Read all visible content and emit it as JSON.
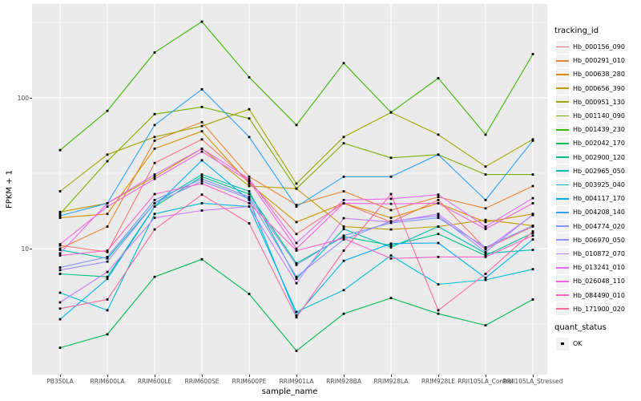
{
  "chart_data": {
    "type": "line",
    "title": "",
    "xlabel": "sample_name",
    "ylabel": "FPKM + 1",
    "y_scale": "log10",
    "ylim": [
      1.5,
      420
    ],
    "grid": true,
    "legend_position": "right",
    "y_axis_ticks": [
      {
        "label": "100",
        "value": 100
      },
      {
        "label": "10",
        "value": 10
      }
    ],
    "y_minor_gridlines": [
      3.1623,
      31.623,
      316.23
    ],
    "categories": [
      "PB350LA",
      "RRIM600LA",
      "RRIM600LE",
      "RRIM600SE",
      "RRIM600PE",
      "RRIM901LA",
      "RRIM928BA",
      "RRIM928LA",
      "RRIM928LE",
      "RRII105LA_Control",
      "RRII105LA_Stressed"
    ],
    "series": [
      {
        "name": "Hb_000156_090",
        "color": "#F8766D",
        "values": [
          10.5,
          9.5,
          37,
          53,
          28,
          12.5,
          20,
          15,
          21,
          10,
          14
        ]
      },
      {
        "name": "Hb_000291_010",
        "color": "#EA8331",
        "values": [
          10,
          14,
          52,
          69,
          30,
          19.5,
          24,
          18,
          22,
          18.5,
          26
        ]
      },
      {
        "name": "Hb_000638_280",
        "color": "#D89000",
        "values": [
          16,
          17,
          46,
          60,
          27,
          15,
          20,
          16,
          20,
          15,
          17
        ]
      },
      {
        "name": "Hb_000656_390",
        "color": "#C09B00",
        "values": [
          17.5,
          20,
          30,
          46,
          26,
          25,
          14,
          13.4,
          14,
          15.5,
          14.2
        ]
      },
      {
        "name": "Hb_000951_130",
        "color": "#A3A500",
        "values": [
          24,
          42,
          55,
          65,
          84,
          27,
          55,
          80,
          57,
          35,
          53
        ]
      },
      {
        "name": "Hb_001140_090",
        "color": "#7CAE00",
        "values": [
          17,
          38,
          78,
          87,
          73,
          25,
          50,
          40,
          42,
          31,
          31
        ]
      },
      {
        "name": "Hb_001439_230",
        "color": "#39B600",
        "values": [
          45,
          82,
          200,
          320,
          137,
          66,
          170,
          80,
          135,
          57,
          195
        ]
      },
      {
        "name": "Hb_002042_170",
        "color": "#00BB4E",
        "values": [
          2.2,
          2.7,
          6.5,
          8.5,
          5,
          2.1,
          3.7,
          4.7,
          3.7,
          3.1,
          4.6
        ]
      },
      {
        "name": "Hb_002900_120",
        "color": "#00C087",
        "values": [
          6.8,
          6.5,
          19,
          30,
          23,
          8,
          12,
          10.5,
          12.5,
          9,
          12.7
        ]
      },
      {
        "name": "Hb_002965_050",
        "color": "#00C0B4",
        "values": [
          9.8,
          8.6,
          20,
          31,
          24,
          6.3,
          13.5,
          10.2,
          14,
          9.3,
          9.8
        ]
      },
      {
        "name": "Hb_003925_040",
        "color": "#00BCD8",
        "values": [
          5.1,
          3.9,
          17,
          20,
          19,
          3.8,
          5.3,
          9,
          5.8,
          6.2,
          7.3
        ]
      },
      {
        "name": "Hb_004117_170",
        "color": "#00B0F6",
        "values": [
          3.4,
          6.3,
          19,
          38.5,
          21,
          3.6,
          8.3,
          10.8,
          10.9,
          6.4,
          11.5
        ]
      },
      {
        "name": "Hb_004208_140",
        "color": "#29A3FF",
        "values": [
          16.5,
          20,
          66,
          114,
          55,
          19,
          30,
          30,
          42,
          21,
          52
        ]
      },
      {
        "name": "Hb_004774_020",
        "color": "#7F96FF",
        "values": [
          7.5,
          8.8,
          21,
          29,
          22,
          7.8,
          12.2,
          14.8,
          16,
          10.2,
          14.2
        ]
      },
      {
        "name": "Hb_006970_050",
        "color": "#9590FF",
        "values": [
          7.2,
          8.2,
          20,
          28,
          21.5,
          6.5,
          11.5,
          15.2,
          16.5,
          9.5,
          16.8
        ]
      },
      {
        "name": "Hb_010872_070",
        "color": "#C77CFF",
        "values": [
          4.4,
          7,
          16,
          17.9,
          19,
          5.9,
          15.9,
          15,
          17,
          9.9,
          16.7
        ]
      },
      {
        "name": "Hb_013241_010",
        "color": "#E76BF3",
        "values": [
          9.3,
          20,
          31,
          46,
          29,
          10.9,
          21,
          21.4,
          22.8,
          14,
          21.6
        ]
      },
      {
        "name": "Hb_026048_110",
        "color": "#F763E0",
        "values": [
          10.7,
          19,
          29,
          44,
          28,
          10,
          20,
          19.8,
          20,
          13.5,
          20
        ]
      },
      {
        "name": "Hb_084490_010",
        "color": "#FF61C9",
        "values": [
          9,
          9.7,
          23,
          27,
          20,
          9.7,
          11.7,
          8.6,
          8.8,
          8.8,
          12.2
        ]
      },
      {
        "name": "Hb_171900_020",
        "color": "#FF689E",
        "values": [
          4,
          4.6,
          13.4,
          22.8,
          14.7,
          3.5,
          9.7,
          23,
          3.9,
          6.8,
          13
        ]
      }
    ],
    "legend": {
      "title": "tracking_id"
    },
    "legend2": {
      "title": "quant_status",
      "items": [
        "OK"
      ]
    },
    "points": {
      "shape": "square",
      "color": "#000000"
    },
    "colors": {
      "panel_bg": "#EBEBEB",
      "grid": "#FFFFFF",
      "axis_text": "#4D4D4D",
      "tick_mark": "#333333",
      "page_bg": "#FFFFFF",
      "legend_key_bg": "#F2F2F2"
    }
  }
}
